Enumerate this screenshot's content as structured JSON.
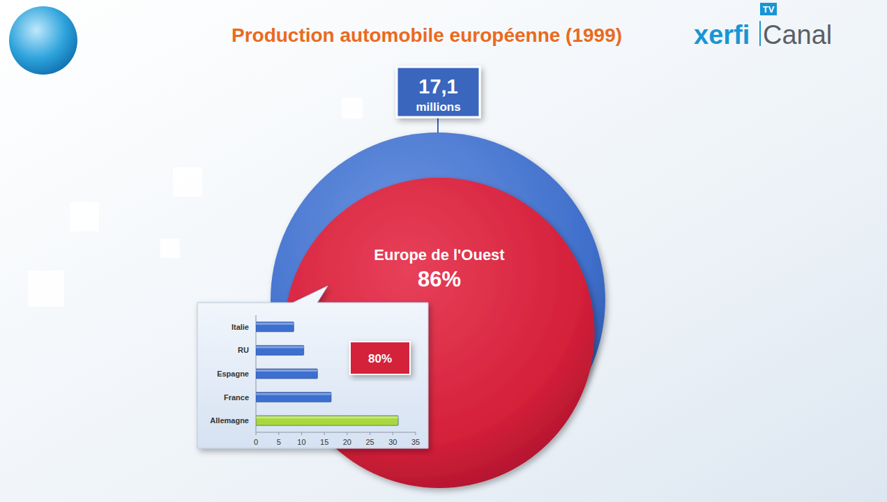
{
  "header": {
    "brand": "xerfi",
    "channel": "Canal",
    "badge": "TV"
  },
  "chart_data": [
    {
      "type": "circles",
      "title": "Production automobile européenne (1999)",
      "total": 17.1,
      "total_label": "17,1",
      "total_unit": "millions",
      "color": "#3f6fcb",
      "categories": [
        "Europe de l'Ouest"
      ],
      "values": [
        86
      ],
      "value_labels": [
        "86%"
      ],
      "colors": [
        "#d4203a"
      ]
    },
    {
      "type": "bar",
      "orientation": "horizontal",
      "categories": [
        "Italie",
        "RU",
        "Espagne",
        "France",
        "Allemagne"
      ],
      "values": [
        8.3,
        10.5,
        13.5,
        16.5,
        31.2
      ],
      "colors": [
        "#3d6fd0",
        "#3d6fd0",
        "#3d6fd0",
        "#3d6fd0",
        "#a8d83c"
      ],
      "xlim": [
        0,
        35
      ],
      "xticks": [
        0,
        5,
        10,
        15,
        20,
        25,
        30,
        35
      ],
      "annotation": "80%"
    }
  ]
}
